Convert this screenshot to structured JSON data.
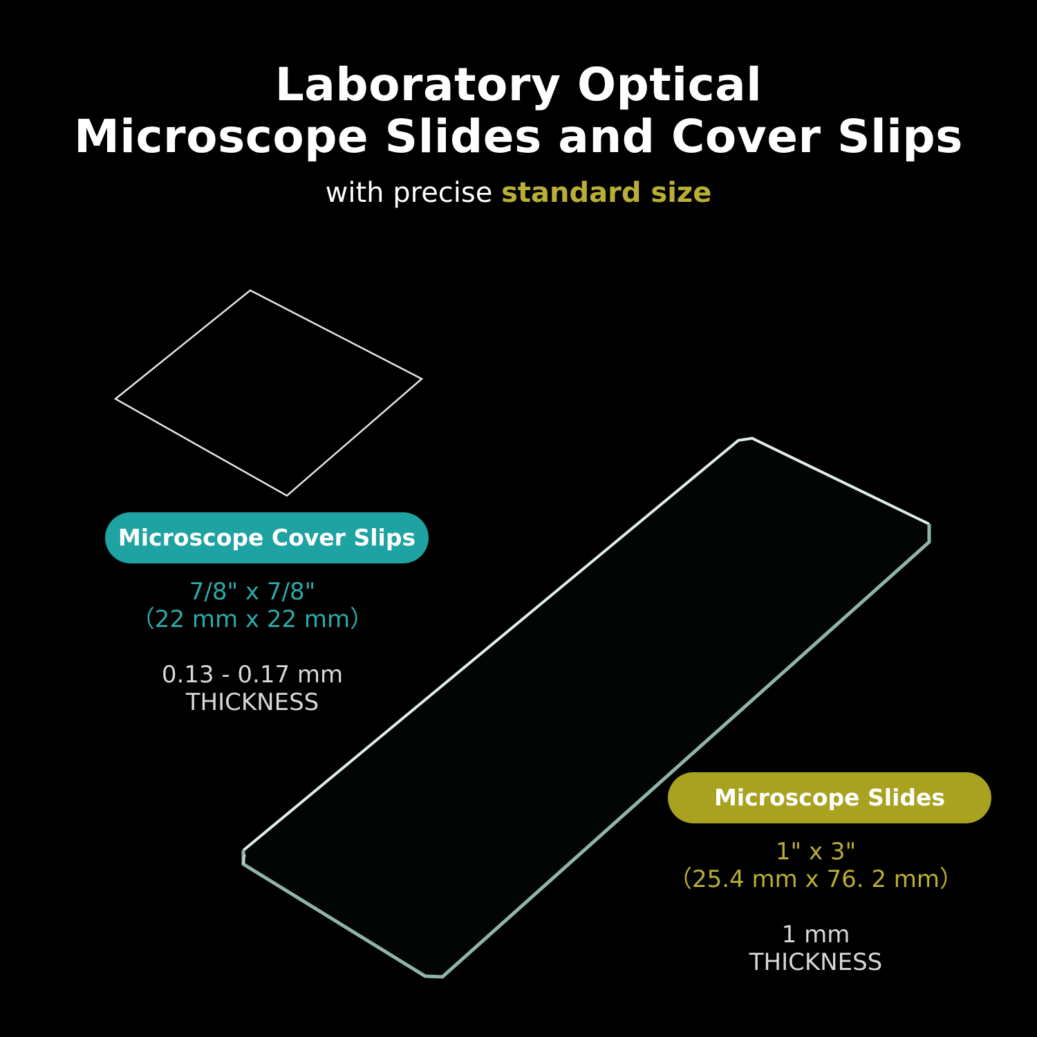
{
  "title": {
    "line1": "Laboratory Optical",
    "line2": "Microscope Slides and Cover Slips"
  },
  "subtitle": {
    "prefix": "with precise ",
    "highlight": "standard size"
  },
  "colors": {
    "teal": "#1ea2a2",
    "teal_text": "#2fa8a8",
    "olive": "#a9a220",
    "olive_text": "#b8ae38",
    "background": "#000000"
  },
  "cover_slips": {
    "label": "Microscope Cover Slips",
    "size_in": "7/8\" x 7/8\"",
    "size_mm": "（22 mm x 22 mm）",
    "thickness_value": "0.13 - 0.17 mm",
    "thickness_label": "THICKNESS"
  },
  "slides": {
    "label": "Microscope Slides",
    "size_in": "1\" x 3\"",
    "size_mm": "（25.4 mm x 76. 2 mm）",
    "thickness_value": "1 mm",
    "thickness_label": "THICKNESS"
  }
}
